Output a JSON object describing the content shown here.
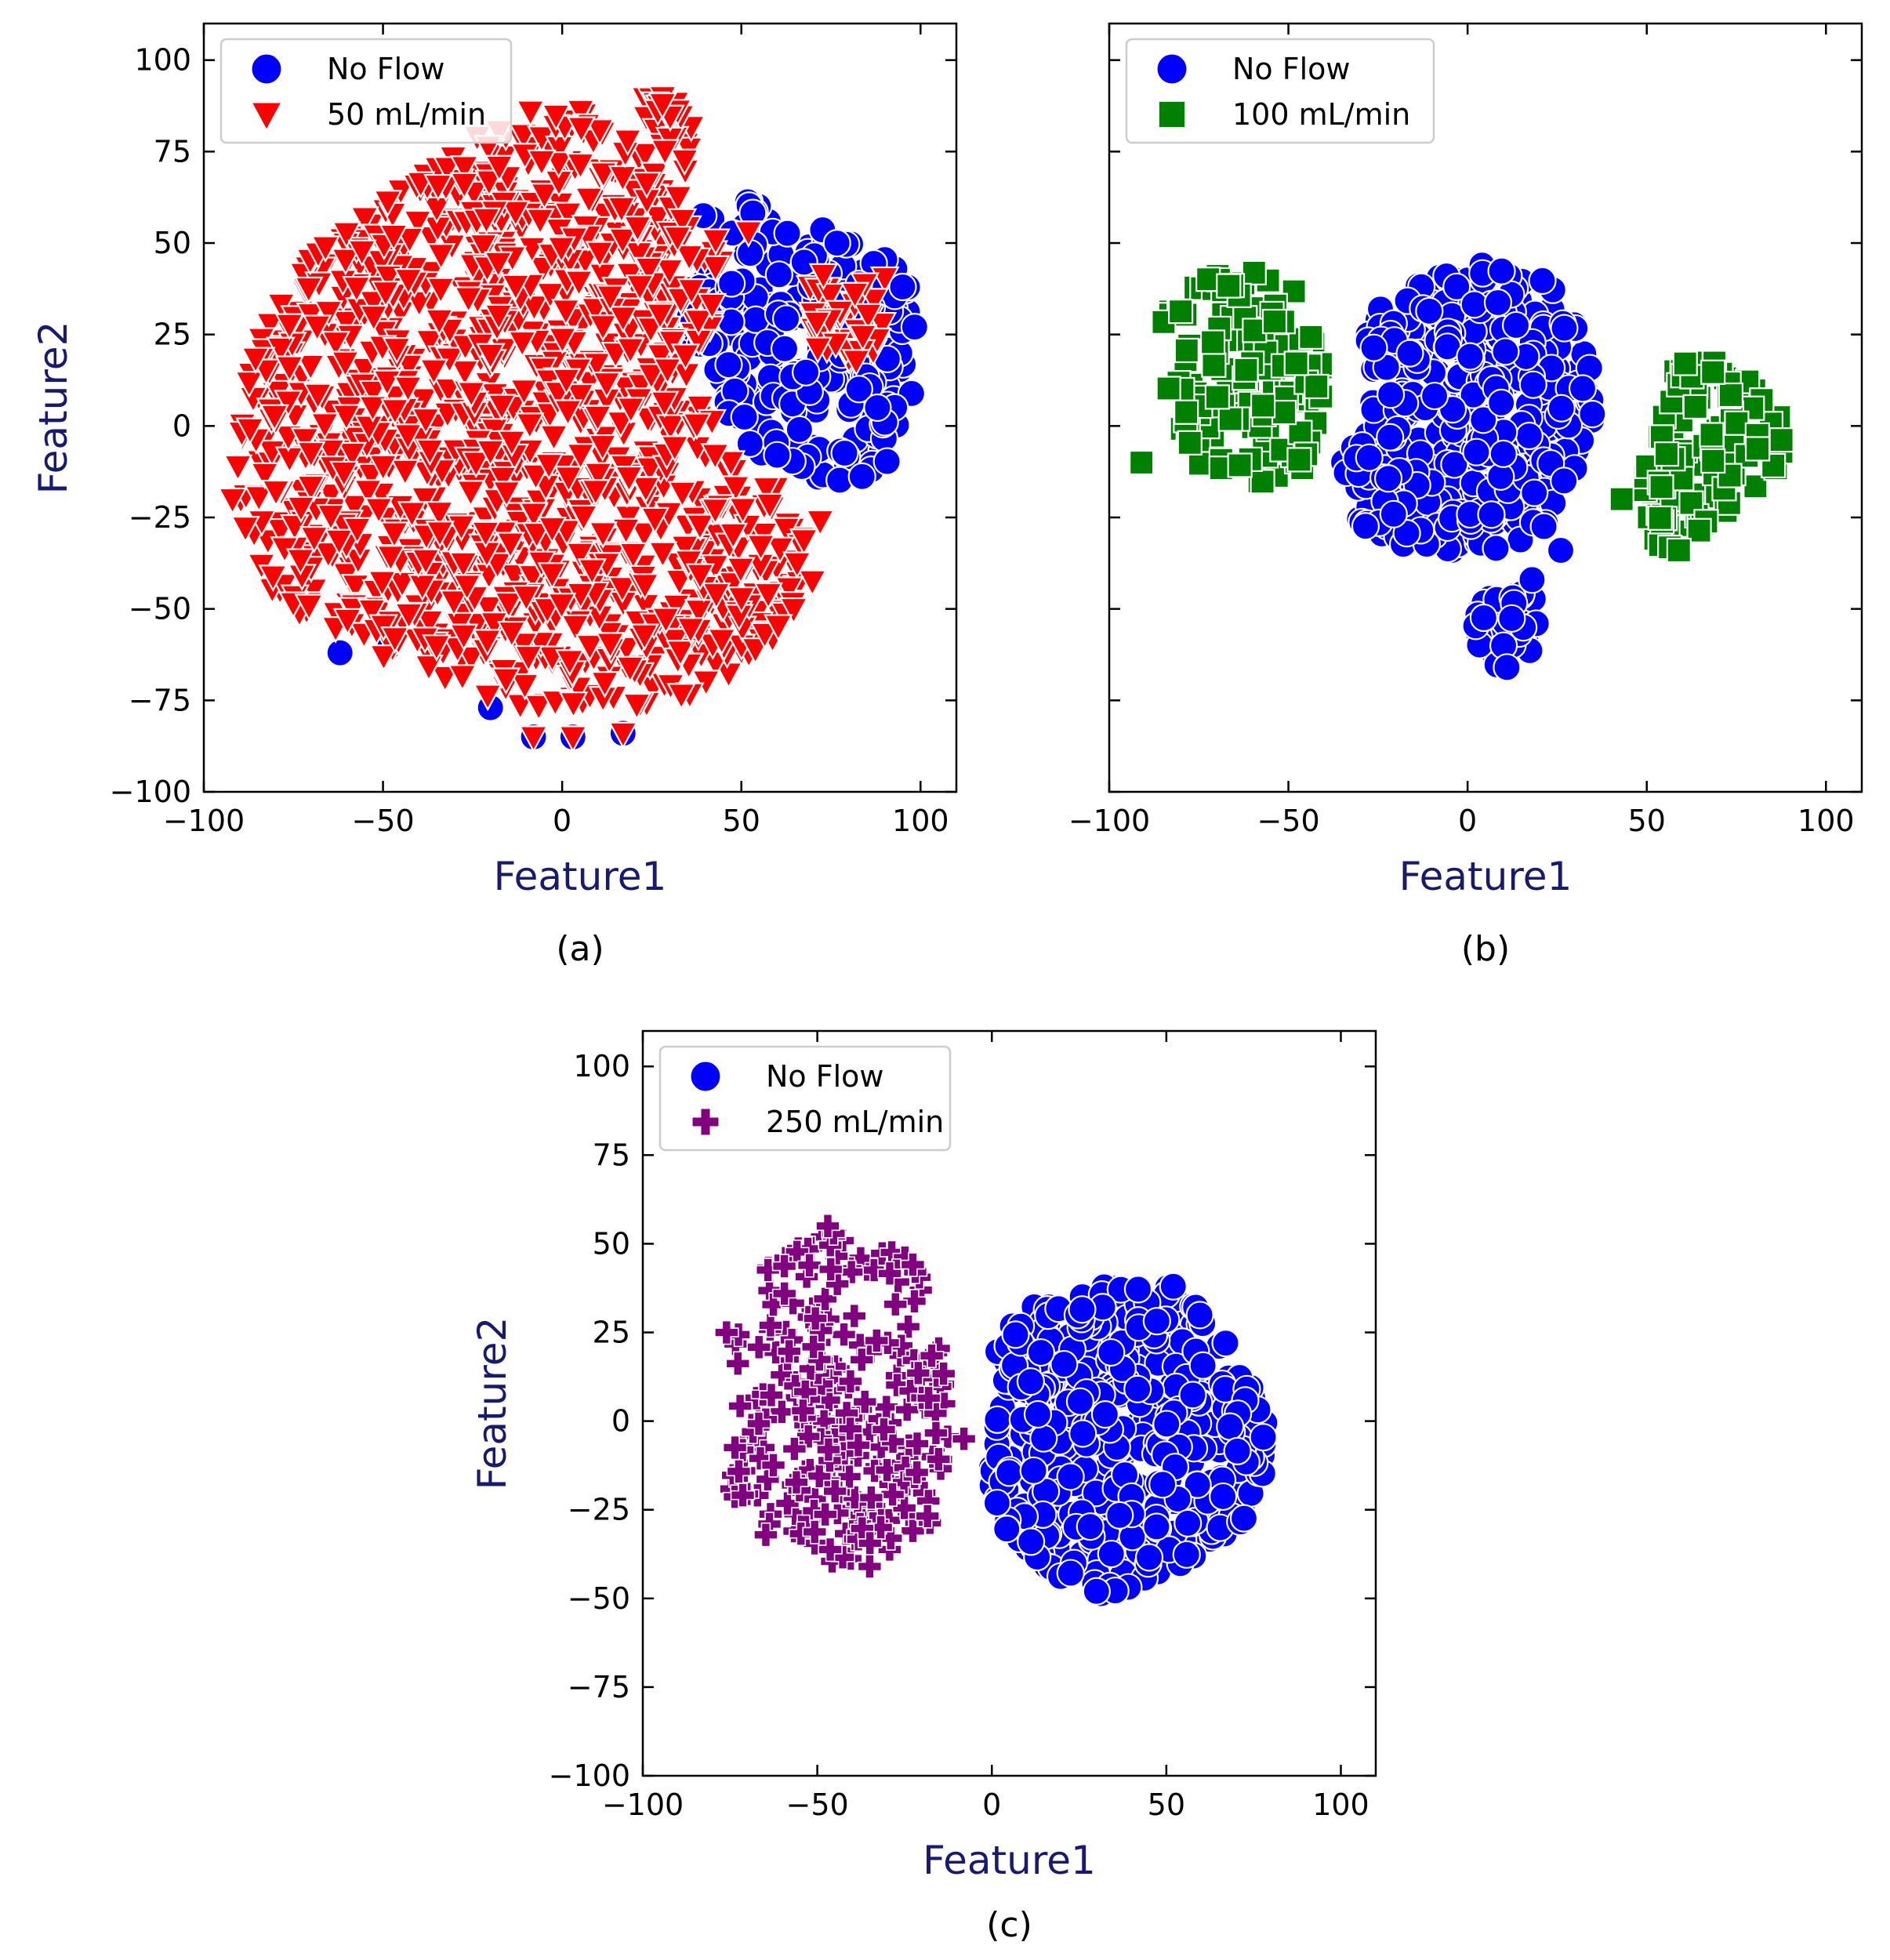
{
  "colors": {
    "no_flow": "#0000ff",
    "flow_50": "#ff0000",
    "flow_100": "#008000",
    "flow_250": "#800080",
    "axis_title": "#191970",
    "frame": "#000000",
    "marker_edge": "#ffffff"
  },
  "chart_data": [
    {
      "id": "a",
      "type": "scatter",
      "caption": "(a)",
      "xlabel": "Feature1",
      "ylabel": "Feature2",
      "xlim": [
        -100,
        110
      ],
      "ylim": [
        -100,
        110
      ],
      "xticks": [
        -100,
        -50,
        0,
        50,
        100
      ],
      "yticks": [
        -100,
        -75,
        -50,
        -25,
        0,
        25,
        50,
        75,
        100
      ],
      "tick_labels": {
        "x": [
          "−100",
          "−50",
          "0",
          "50",
          "100"
        ],
        "y": [
          "−100",
          "−75",
          "−50",
          "−25",
          "0",
          "25",
          "50",
          "75",
          "100"
        ]
      },
      "legend_position": "upper-left",
      "series": [
        {
          "name": "No Flow",
          "marker": "circle",
          "color": "#0000ff",
          "clusters": [
            {
              "polygon": [
                [
                  40,
                  62
                ],
                [
                  55,
                  62
                ],
                [
                  72,
                  54
                ],
                [
                  90,
                  46
                ],
                [
                  99,
                  38
                ],
                [
                  98,
                  10
                ],
                [
                  92,
                  -10
                ],
                [
                  75,
                  -18
                ],
                [
                  62,
                  -12
                ],
                [
                  48,
                  -4
                ],
                [
                  38,
                  12
                ],
                [
                  34,
                  38
                ]
              ],
              "count": 230,
              "seed": 11
            }
          ],
          "points": [
            [
              -8,
              -85
            ],
            [
              3,
              -85
            ],
            [
              17,
              -84
            ],
            [
              -62,
              -62
            ],
            [
              -48,
              -60
            ],
            [
              -20,
              -77
            ],
            [
              60,
              -8
            ],
            [
              95,
              38
            ],
            [
              88,
              5
            ]
          ]
        },
        {
          "name": "50 mL/min",
          "marker": "triangle-down",
          "color": "#ff0000",
          "clusters": [
            {
              "polygon": [
                [
                  -92,
                  -20
                ],
                [
                  -90,
                  5
                ],
                [
                  -82,
                  30
                ],
                [
                  -70,
                  46
                ],
                [
                  -52,
                  60
                ],
                [
                  -38,
                  70
                ],
                [
                  -20,
                  82
                ],
                [
                  -5,
                  88
                ],
                [
                  10,
                  86
                ],
                [
                  20,
                  78
                ],
                [
                  34,
                  62
                ],
                [
                  45,
                  50
                ],
                [
                  44,
                  30
                ],
                [
                  36,
                  15
                ],
                [
                  45,
                  -5
                ],
                [
                  62,
                  -18
                ],
                [
                  72,
                  -40
                ],
                [
                  58,
                  -62
                ],
                [
                  35,
                  -75
                ],
                [
                  10,
                  -78
                ],
                [
                  -15,
                  -76
                ],
                [
                  -35,
                  -68
                ],
                [
                  -55,
                  -62
                ],
                [
                  -70,
                  -54
                ],
                [
                  -84,
                  -42
                ]
              ],
              "count": 1400,
              "seed": 3
            },
            {
              "polygon": [
                [
                  68,
                  42
                ],
                [
                  92,
                  42
                ],
                [
                  88,
                  20
                ],
                [
                  78,
                  12
                ],
                [
                  70,
                  22
                ]
              ],
              "count": 40,
              "seed": 5
            },
            {
              "polygon": [
                [
                  22,
                  90
                ],
                [
                  32,
                  90
                ],
                [
                  38,
                  78
                ],
                [
                  37,
                  68
                ],
                [
                  30,
                  72
                ],
                [
                  24,
                  82
                ]
              ],
              "count": 28,
              "seed": 7
            }
          ],
          "points": [
            [
              -8,
              -85
            ],
            [
              3,
              -85
            ],
            [
              17,
              -84
            ],
            [
              -92,
              -20
            ],
            [
              52,
              53
            ],
            [
              28,
              88
            ],
            [
              72,
              -26
            ]
          ]
        }
      ]
    },
    {
      "id": "b",
      "type": "scatter",
      "caption": "(b)",
      "xlabel": "Feature1",
      "ylabel": "",
      "xlim": [
        -100,
        110
      ],
      "ylim": [
        -100,
        110
      ],
      "xticks": [
        -100,
        -50,
        0,
        50,
        100
      ],
      "yticks": [
        -100,
        -75,
        -50,
        -25,
        0,
        25,
        50,
        75,
        100
      ],
      "tick_labels": {
        "x": [
          "−100",
          "−50",
          "0",
          "50",
          "100"
        ],
        "y": []
      },
      "legend_position": "upper-left",
      "series": [
        {
          "name": "No Flow",
          "marker": "circle",
          "color": "#0000ff",
          "clusters": [
            {
              "polygon": [
                [
                  -28,
                  30
                ],
                [
                  -15,
                  38
                ],
                [
                  0,
                  44
                ],
                [
                  12,
                  44
                ],
                [
                  22,
                  40
                ],
                [
                  32,
                  25
                ],
                [
                  36,
                  8
                ],
                [
                  33,
                  -8
                ],
                [
                  26,
                  -20
                ],
                [
                  20,
                  -30
                ],
                [
                  12,
                  -35
                ],
                [
                  -5,
                  -35
                ],
                [
                  -20,
                  -32
                ],
                [
                  -32,
                  -26
                ],
                [
                  -35,
                  -10
                ],
                [
                  -28,
                  5
                ]
              ],
              "count": 420,
              "seed": 21
            },
            {
              "polygon": [
                [
                  2,
                  -50
                ],
                [
                  8,
                  -45
                ],
                [
                  18,
                  -45
                ],
                [
                  22,
                  -52
                ],
                [
                  18,
                  -64
                ],
                [
                  10,
                  -67
                ],
                [
                  2,
                  -60
                ]
              ],
              "count": 40,
              "seed": 23
            }
          ],
          "points": [
            [
              26,
              -34
            ],
            [
              18,
              -42
            ],
            [
              11,
              -66
            ]
          ]
        },
        {
          "name": "100 mL/min",
          "marker": "square",
          "color": "#008000",
          "clusters": [
            {
              "polygon": [
                [
                  -85,
                  32
                ],
                [
                  -70,
                  42
                ],
                [
                  -58,
                  42
                ],
                [
                  -44,
                  38
                ],
                [
                  -40,
                  18
                ],
                [
                  -42,
                  -5
                ],
                [
                  -46,
                  -14
                ],
                [
                  -62,
                  -16
                ],
                [
                  -76,
                  -10
                ],
                [
                  -84,
                  5
                ]
              ],
              "count": 130,
              "seed": 31
            },
            {
              "polygon": [
                [
                  58,
                  18
                ],
                [
                  70,
                  20
                ],
                [
                  82,
                  12
                ],
                [
                  90,
                  0
                ],
                [
                  86,
                  -12
                ],
                [
                  76,
                  -22
                ],
                [
                  66,
                  -28
                ],
                [
                  56,
                  -35
                ],
                [
                  50,
                  -30
                ],
                [
                  48,
                  -15
                ],
                [
                  54,
                  0
                ]
              ],
              "count": 110,
              "seed": 33
            }
          ],
          "points": [
            [
              -91,
              -10
            ],
            [
              43,
              -20
            ],
            [
              59,
              -34
            ]
          ]
        }
      ]
    },
    {
      "id": "c",
      "type": "scatter",
      "caption": "(c)",
      "xlabel": "Feature1",
      "ylabel": "Feature2",
      "xlim": [
        -100,
        110
      ],
      "ylim": [
        -100,
        110
      ],
      "xticks": [
        -100,
        -50,
        0,
        50,
        100
      ],
      "yticks": [
        -100,
        -75,
        -50,
        -25,
        0,
        25,
        50,
        75,
        100
      ],
      "tick_labels": {
        "x": [
          "−100",
          "−50",
          "0",
          "50",
          "100"
        ],
        "y": [
          "−100",
          "−75",
          "−50",
          "−25",
          "0",
          "25",
          "50",
          "75",
          "100"
        ]
      },
      "legend_position": "upper-left",
      "series": [
        {
          "name": "No Flow",
          "marker": "circle",
          "color": "#0000ff",
          "clusters": [
            {
              "polygon": [
                [
                  2,
                  25
                ],
                [
                  15,
                  35
                ],
                [
                  30,
                  38
                ],
                [
                  50,
                  38
                ],
                [
                  62,
                  30
                ],
                [
                  68,
                  18
                ],
                [
                  78,
                  5
                ],
                [
                  80,
                  -12
                ],
                [
                  72,
                  -28
                ],
                [
                  60,
                  -38
                ],
                [
                  45,
                  -46
                ],
                [
                  30,
                  -49
                ],
                [
                  15,
                  -42
                ],
                [
                  2,
                  -28
                ],
                [
                  -2,
                  -10
                ]
              ],
              "count": 480,
              "seed": 41
            }
          ],
          "points": [
            [
              67,
              22
            ],
            [
              30,
              -48
            ],
            [
              52,
              38
            ]
          ]
        },
        {
          "name": "250 mL/min",
          "marker": "plus",
          "color": "#800080",
          "clusters": [
            {
              "polygon": [
                [
                  -72,
                  32
                ],
                [
                  -62,
                  48
                ],
                [
                  -48,
                  55
                ],
                [
                  -32,
                  52
                ],
                [
                  -22,
                  48
                ],
                [
                  -16,
                  25
                ],
                [
                  -10,
                  0
                ],
                [
                  -12,
                  -20
                ],
                [
                  -20,
                  -35
                ],
                [
                  -35,
                  -40
                ],
                [
                  -52,
                  -40
                ],
                [
                  -65,
                  -32
                ],
                [
                  -75,
                  -20
                ],
                [
                  -74,
                  0
                ],
                [
                  -76,
                  20
                ]
              ],
              "count": 260,
              "seed": 51
            }
          ],
          "points": [
            [
              -47,
              55
            ],
            [
              -76,
              25
            ],
            [
              -35,
              -41
            ],
            [
              -8,
              -5
            ]
          ]
        }
      ]
    }
  ]
}
